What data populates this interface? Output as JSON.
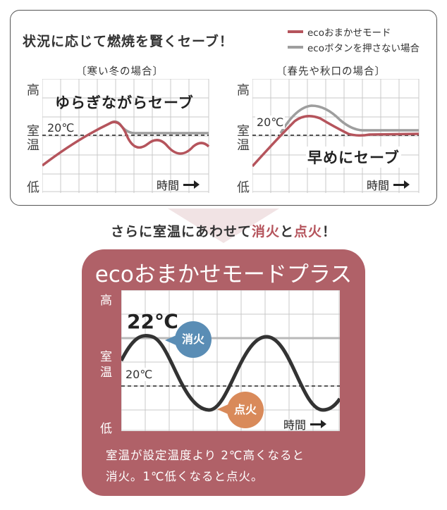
{
  "top": {
    "headline": "状況に応じて燃焼を賢くセーブ！",
    "legend": [
      {
        "label": "ecoおまかせモード",
        "color": "#b5545c"
      },
      {
        "label": "ecoボタンを押さない場合",
        "color": "#9e9e9e"
      }
    ],
    "left_chart": {
      "subtitle": "〔寒い冬の場合〕",
      "caption": "ゆらぎながらセーブ",
      "temp_label": "20℃",
      "y_high": "高",
      "y_room1": "室",
      "y_room2": "温",
      "y_low": "低",
      "x_label": "時間"
    },
    "right_chart": {
      "subtitle": "〔春先や秋口の場合〕",
      "caption": "早めにセーブ",
      "temp_label": "20℃",
      "y_high": "高",
      "y_room1": "室",
      "y_room2": "温",
      "y_low": "低",
      "x_label": "時間"
    }
  },
  "middle": {
    "text_plain_1": "さらに室温にあわせて",
    "text_accent_1": "消火",
    "text_plain_2": "と",
    "text_accent_2": "点火",
    "text_plain_3": "！"
  },
  "bottom": {
    "title": "ecoおまかせモードプラス",
    "y_high": "高",
    "y_room1": "室",
    "y_room2": "温",
    "y_low": "低",
    "upper_temp": "22℃",
    "lower_temp": "20℃",
    "off_label": "消火",
    "on_label": "点火",
    "x_label": "時間",
    "caption_line1": "室温が設定温度より 2℃高くなると",
    "caption_line2": "消火。1℃低くなると点火。"
  },
  "colors": {
    "eco_line": "#b5545c",
    "no_eco_line": "#9e9e9e",
    "panel": "#b06168",
    "off_bubble": "#5a8db5",
    "on_bubble": "#d98a5a"
  }
}
